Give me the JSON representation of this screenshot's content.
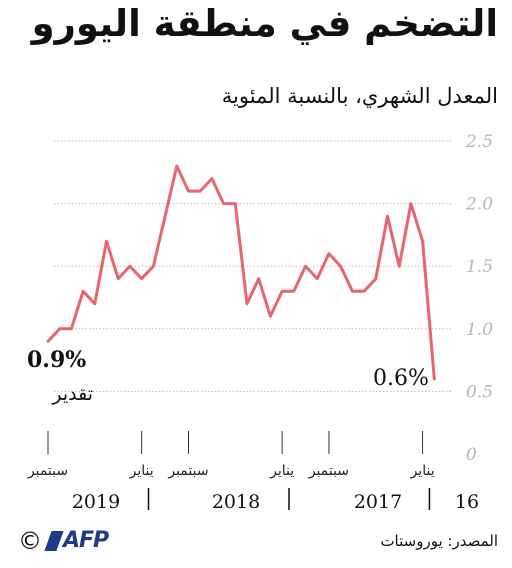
{
  "title": "التضخم في منطقة اليورو",
  "subtitle": "المعدل الشهري، بالنسبة المئوية",
  "source": "المصدر: يوروستات",
  "logo": {
    "copyright": "©",
    "brand": "AFP"
  },
  "colors": {
    "line": "#e8656c",
    "grid": "#bdbdbd",
    "text": "#111111"
  },
  "chart_data": {
    "type": "line",
    "title": "التضخم في منطقة اليورو",
    "ylabel": "",
    "xlabel": "",
    "ylim": [
      0,
      2.5
    ],
    "y_ticks": [
      "0",
      "0.5",
      "1.0",
      "1.5",
      "2.0",
      "2.5"
    ],
    "grid": true,
    "x_direction": "right-to-left",
    "x": [
      "2016-12",
      "2017-01",
      "2017-02",
      "2017-03",
      "2017-04",
      "2017-05",
      "2017-06",
      "2017-07",
      "2017-08",
      "2017-09",
      "2017-10",
      "2017-11",
      "2017-12",
      "2018-01",
      "2018-02",
      "2018-03",
      "2018-04",
      "2018-05",
      "2018-06",
      "2018-07",
      "2018-08",
      "2018-09",
      "2018-10",
      "2018-11",
      "2018-12",
      "2019-01",
      "2019-02",
      "2019-03",
      "2019-04",
      "2019-05",
      "2019-06",
      "2019-07",
      "2019-08",
      "2019-09"
    ],
    "series": [
      {
        "values": [
          0.6,
          1.7,
          2.0,
          1.5,
          1.9,
          1.4,
          1.3,
          1.3,
          1.5,
          1.6,
          1.4,
          1.5,
          1.3,
          1.3,
          1.1,
          1.4,
          1.2,
          2.0,
          2.0,
          2.2,
          2.1,
          2.1,
          2.3,
          1.9,
          1.5,
          1.4,
          1.5,
          1.4,
          1.7,
          1.2,
          1.3,
          1.0,
          1.0,
          0.9
        ]
      }
    ],
    "month_labels": [
      "يناير",
      "سبتمبر",
      "يناير",
      "سبتمبر",
      "يناير",
      "سبتمبر"
    ],
    "year_labels": [
      "16",
      "2017",
      "2018",
      "2019"
    ],
    "annotations": [
      {
        "value": "0.6%",
        "note": ""
      },
      {
        "value": "0.9%",
        "note": "تقدير"
      }
    ]
  }
}
